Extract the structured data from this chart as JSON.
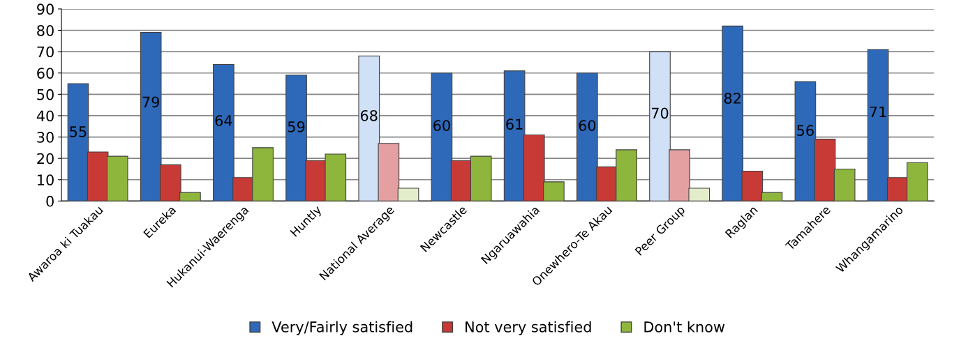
{
  "chart_data": {
    "type": "bar",
    "categories": [
      "Awaroa ki Tuakau",
      "Eureka",
      "Hukanui-Waerenga",
      "Huntly",
      "National Average",
      "Newcastle",
      "Ngaruawahia",
      "Onewhero-Te Akau",
      "Peer Group",
      "Raglan",
      "Tamahere",
      "Whangamarino"
    ],
    "series": [
      {
        "name": "Very/Fairly satisfied",
        "color": "#2e68b8",
        "colors": [
          "#2e68b8",
          "#2e68b8",
          "#2e68b8",
          "#2e68b8",
          "#cfe0f7",
          "#2e68b8",
          "#2e68b8",
          "#2e68b8",
          "#cfe0f7",
          "#2e68b8",
          "#2e68b8",
          "#2e68b8"
        ],
        "values": [
          55,
          79,
          64,
          59,
          68,
          60,
          61,
          60,
          70,
          82,
          56,
          71
        ],
        "value_labels": [
          "55",
          "79",
          "64",
          "59",
          "68",
          "60",
          "61",
          "60",
          "70",
          "82",
          "56",
          "71"
        ]
      },
      {
        "name": "Not very satisfied",
        "color": "#c83a36",
        "colors": [
          "#c83a36",
          "#c83a36",
          "#c83a36",
          "#c83a36",
          "#e4a0a0",
          "#c83a36",
          "#c83a36",
          "#c83a36",
          "#e4a0a0",
          "#c83a36",
          "#c83a36",
          "#c83a36"
        ],
        "values": [
          23,
          17,
          11,
          19,
          27,
          19,
          31,
          16,
          24,
          14,
          29,
          11
        ]
      },
      {
        "name": "Don't know",
        "color": "#8fb63c",
        "colors": [
          "#8fb63c",
          "#8fb63c",
          "#8fb63c",
          "#8fb63c",
          "#e3edcc",
          "#8fb63c",
          "#8fb63c",
          "#8fb63c",
          "#e3edcc",
          "#8fb63c",
          "#8fb63c",
          "#8fb63c"
        ],
        "values": [
          21,
          4,
          25,
          22,
          6,
          21,
          9,
          24,
          6,
          4,
          15,
          18
        ]
      }
    ],
    "ylim": [
      0,
      90
    ],
    "yticks": [
      0,
      10,
      20,
      30,
      40,
      50,
      60,
      70,
      80,
      90
    ],
    "grid": "y",
    "legend": "bottom"
  }
}
